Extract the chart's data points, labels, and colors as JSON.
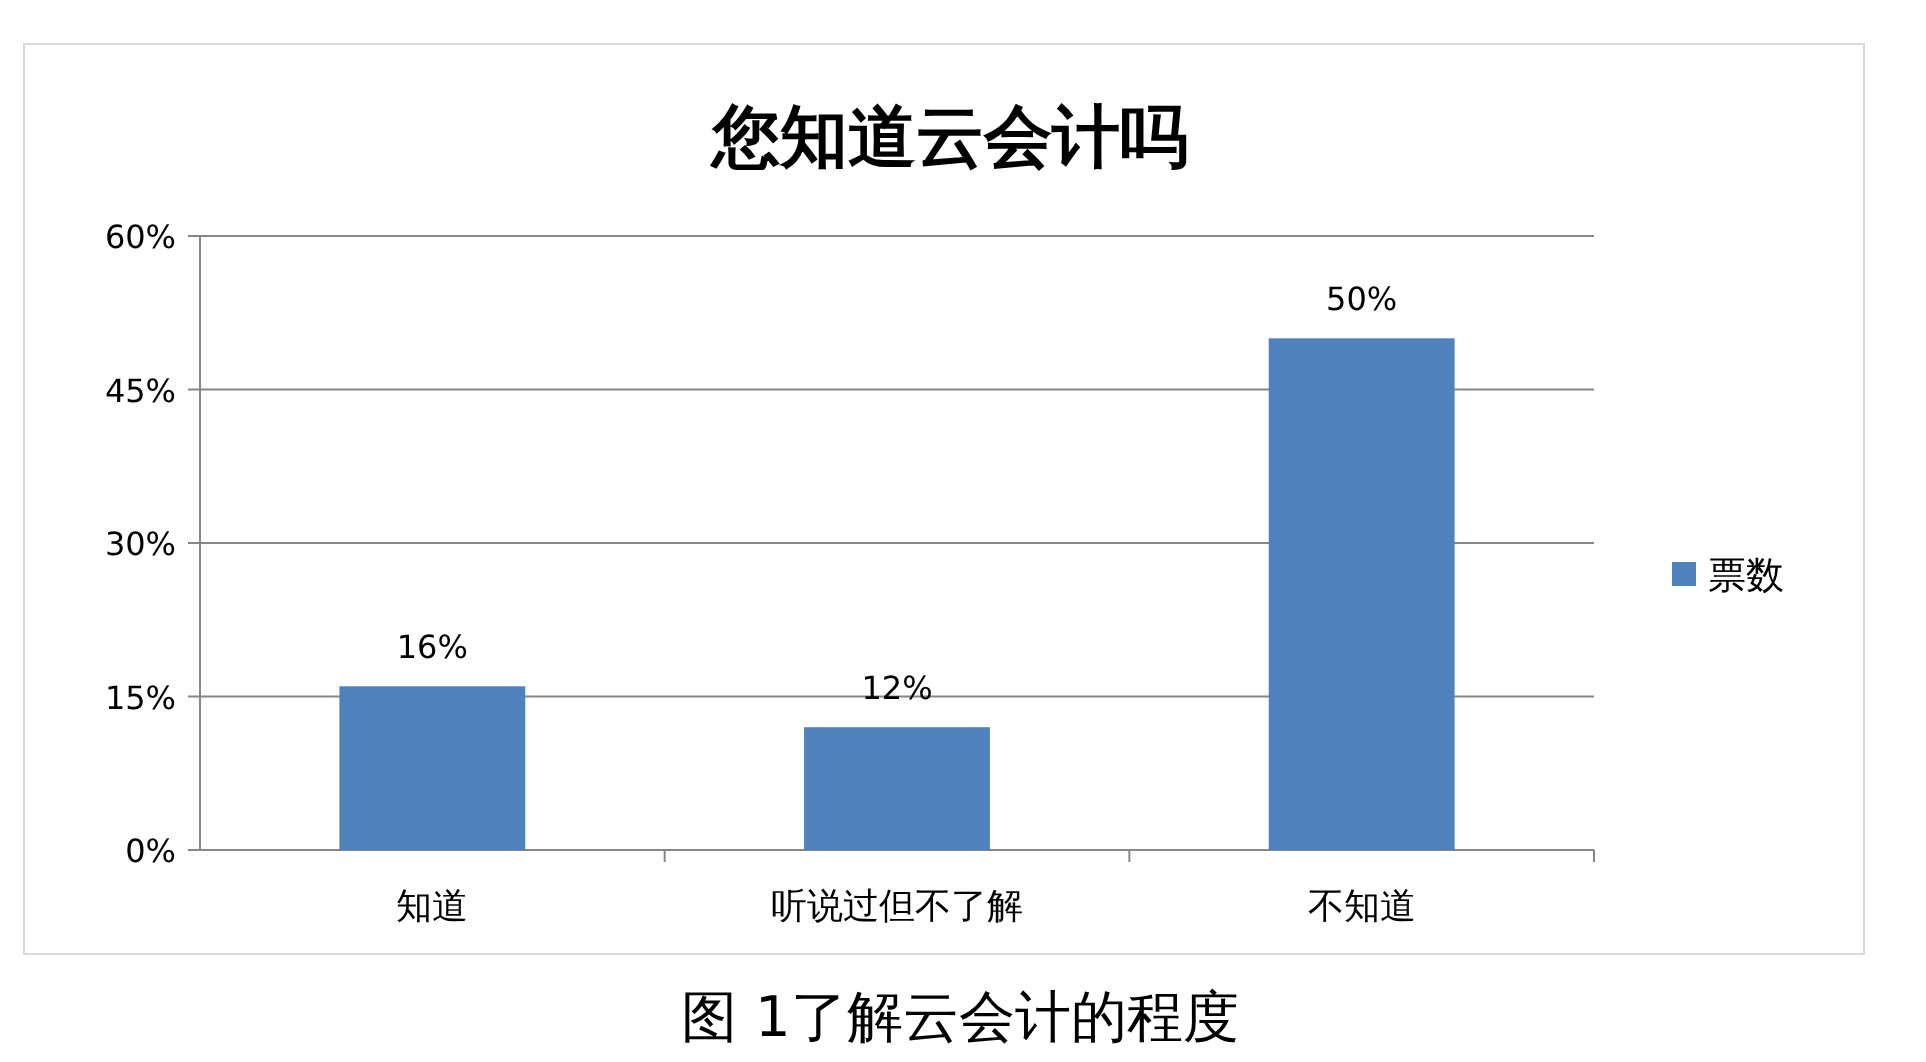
{
  "chart_data": {
    "type": "bar",
    "title": "您知道云会计吗",
    "categories": [
      "知道",
      "听说过但不了解",
      "不知道"
    ],
    "series": [
      {
        "name": "票数",
        "color": "#4f81bd",
        "values": [
          16,
          12,
          50
        ],
        "value_labels": [
          "16%",
          "12%",
          "50%"
        ]
      }
    ],
    "ylim": [
      0,
      60
    ],
    "yticks": [
      {
        "value": 0,
        "label": "0%"
      },
      {
        "value": 15,
        "label": "15%"
      },
      {
        "value": 30,
        "label": "30%"
      },
      {
        "value": 45,
        "label": "45%"
      },
      {
        "value": 60,
        "label": "60%"
      }
    ],
    "grid": "y",
    "legend": "right",
    "annotations": [
      "图 1了解云会计的程度"
    ]
  }
}
